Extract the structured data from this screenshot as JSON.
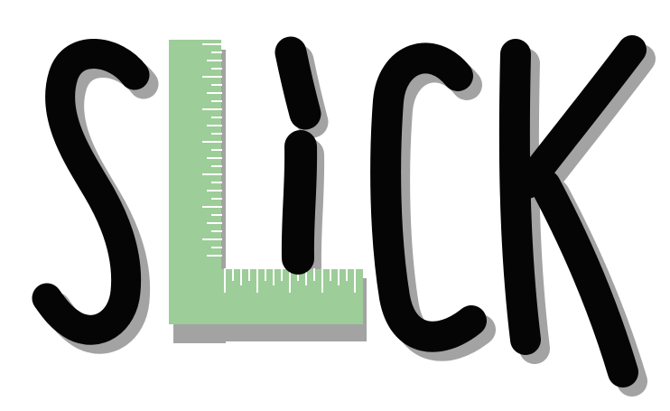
{
  "logo": {
    "word": "SLICK",
    "style": "hand-lettered black letters with gray drop shadow; the L is drawn as a green carpenter's square ruler",
    "colors": {
      "background": "#ffffff",
      "ink": "#050505",
      "shadow": "#a3a3a3",
      "ruler_fill": "#9dcd98",
      "ruler_ticks": "#ffffff"
    }
  }
}
